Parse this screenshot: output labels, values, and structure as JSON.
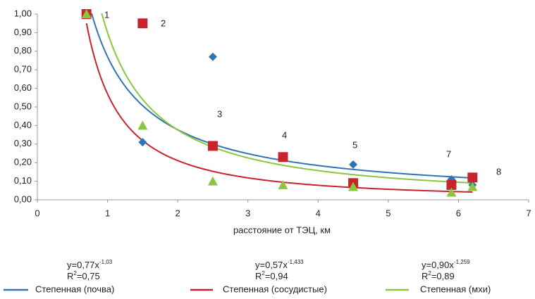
{
  "chart_data": {
    "type": "scatter",
    "xlabel": "расстояние от ТЭЦ, км",
    "xlim": [
      0,
      7
    ],
    "xticks": [
      0,
      1,
      2,
      3,
      4,
      5,
      6,
      7
    ],
    "ylim": [
      0,
      1
    ],
    "yticks": [
      {
        "value": 0,
        "label": "0,00"
      },
      {
        "value": 0.1,
        "label": "0,10"
      },
      {
        "value": 0.2,
        "label": "0,20"
      },
      {
        "value": 0.3,
        "label": "0,30"
      },
      {
        "value": 0.4,
        "label": "0,40"
      },
      {
        "value": 0.5,
        "label": "0,50"
      },
      {
        "value": 0.6,
        "label": "0,60"
      },
      {
        "value": 0.7,
        "label": "0,70"
      },
      {
        "value": 0.8,
        "label": "0,80"
      },
      {
        "value": 0.9,
        "label": "0,90"
      },
      {
        "value": 1,
        "label": "1,00"
      }
    ],
    "grid": false,
    "series": [
      {
        "color": "#2e75b6",
        "marker": "diamond",
        "x": [
          0.7,
          1.5,
          2.5,
          2.5,
          3.5,
          4.5,
          5.9,
          6.2
        ],
        "values": [
          1.0,
          0.31,
          0.77,
          0.29,
          0.23,
          0.19,
          0.11,
          0.08
        ]
      },
      {
        "color": "#c8242b",
        "marker": "square",
        "x": [
          0.7,
          1.5,
          2.5,
          3.5,
          4.5,
          5.9,
          6.2
        ],
        "values": [
          1.0,
          0.95,
          0.29,
          0.23,
          0.09,
          0.08,
          0.12
        ]
      },
      {
        "color": "#8cc63f",
        "marker": "triangle",
        "x": [
          0.7,
          1.5,
          2.5,
          3.5,
          4.5,
          5.9,
          6.2
        ],
        "values": [
          1.0,
          0.4,
          0.1,
          0.08,
          0.07,
          0.04,
          0.07
        ]
      }
    ],
    "trendlines": [
      {
        "name": "Степенная (почва)",
        "color": "#2e75b6",
        "equation": "y=0,77x",
        "a": 0.77,
        "b": {
          "value": -1.03,
          "label": "-1,03"
        },
        "r2_base": "R",
        "r2_sup": "2",
        "r2_rest": "=0,75"
      },
      {
        "name": "Степенная (сосудистые)",
        "color": "#c8242b",
        "equation": "y=0,57x",
        "a": 0.57,
        "b": {
          "value": -1.433,
          "label": "-1,433"
        },
        "r2_base": "R",
        "r2_sup": "2",
        "r2_rest": "=0,94"
      },
      {
        "name": "Степенная (мхи)",
        "color": "#8cc63f",
        "equation": "y=0,90x",
        "a": 0.9,
        "b": {
          "value": -1.259,
          "label": "-1,259"
        },
        "r2_base": "R",
        "r2_sup": "2",
        "r2_rest": "=0,89"
      }
    ],
    "annotations": [
      "1",
      "2",
      "3",
      "4",
      "5",
      "7",
      "8"
    ]
  }
}
